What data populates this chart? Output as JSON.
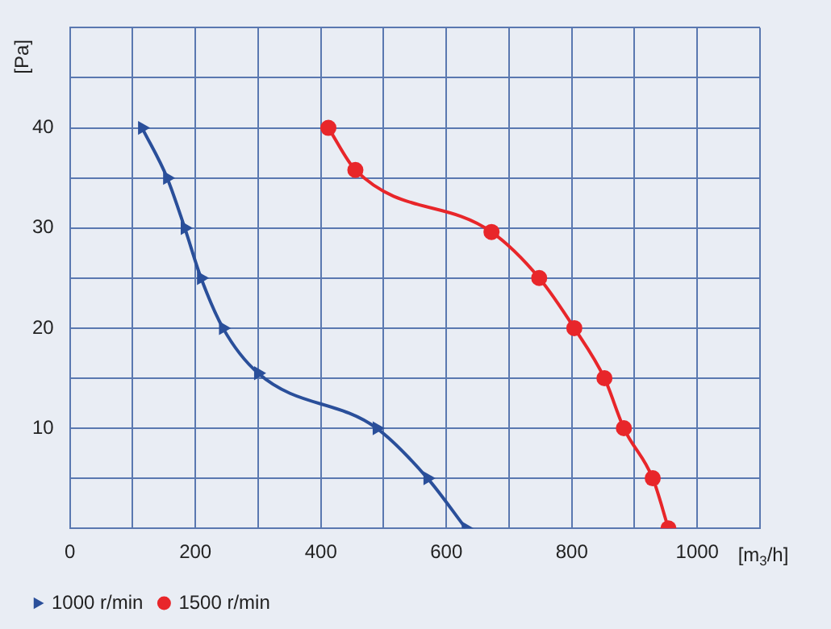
{
  "chart_data": {
    "type": "line",
    "xlabel": "[m$_{3}$/h]",
    "ylabel": "[Pa]",
    "xlim": [
      0,
      1100
    ],
    "xticks": [
      0,
      {
        "value": 100,
        "label": null
      },
      200,
      {
        "value": 300,
        "label": null
      },
      400,
      {
        "value": 500,
        "label": null
      },
      600,
      {
        "value": 700,
        "label": null
      },
      800,
      {
        "value": 900,
        "label": null
      },
      1000,
      {
        "value": 1100,
        "label": null
      }
    ],
    "ylim": [
      0,
      50
    ],
    "yticks": [
      {
        "value": 0,
        "label": null
      },
      {
        "value": 5,
        "label": null
      },
      10,
      {
        "value": 15,
        "label": null
      },
      20,
      {
        "value": 25,
        "label": null
      },
      30,
      {
        "value": 35,
        "label": null
      },
      40,
      {
        "value": 45,
        "label": null
      },
      {
        "value": 50,
        "label": null
      }
    ],
    "grid": true,
    "legend": "bottom left",
    "series": [
      {
        "name": "1000 r/min",
        "color": "#2a4f9a",
        "marker": "triangle",
        "x": [
          115,
          155,
          183,
          209,
          244,
          300,
          489,
          570,
          631
        ],
        "values": [
          40,
          35,
          30,
          25,
          20,
          15.5,
          10,
          5,
          0
        ]
      },
      {
        "name": "1500 r/min",
        "color": "#e8262a",
        "marker": "circle",
        "x": [
          412,
          455,
          672,
          748,
          804,
          852,
          883,
          929,
          954
        ],
        "values": [
          40,
          35.8,
          29.6,
          25,
          20,
          15,
          10,
          5,
          0
        ]
      }
    ]
  }
}
